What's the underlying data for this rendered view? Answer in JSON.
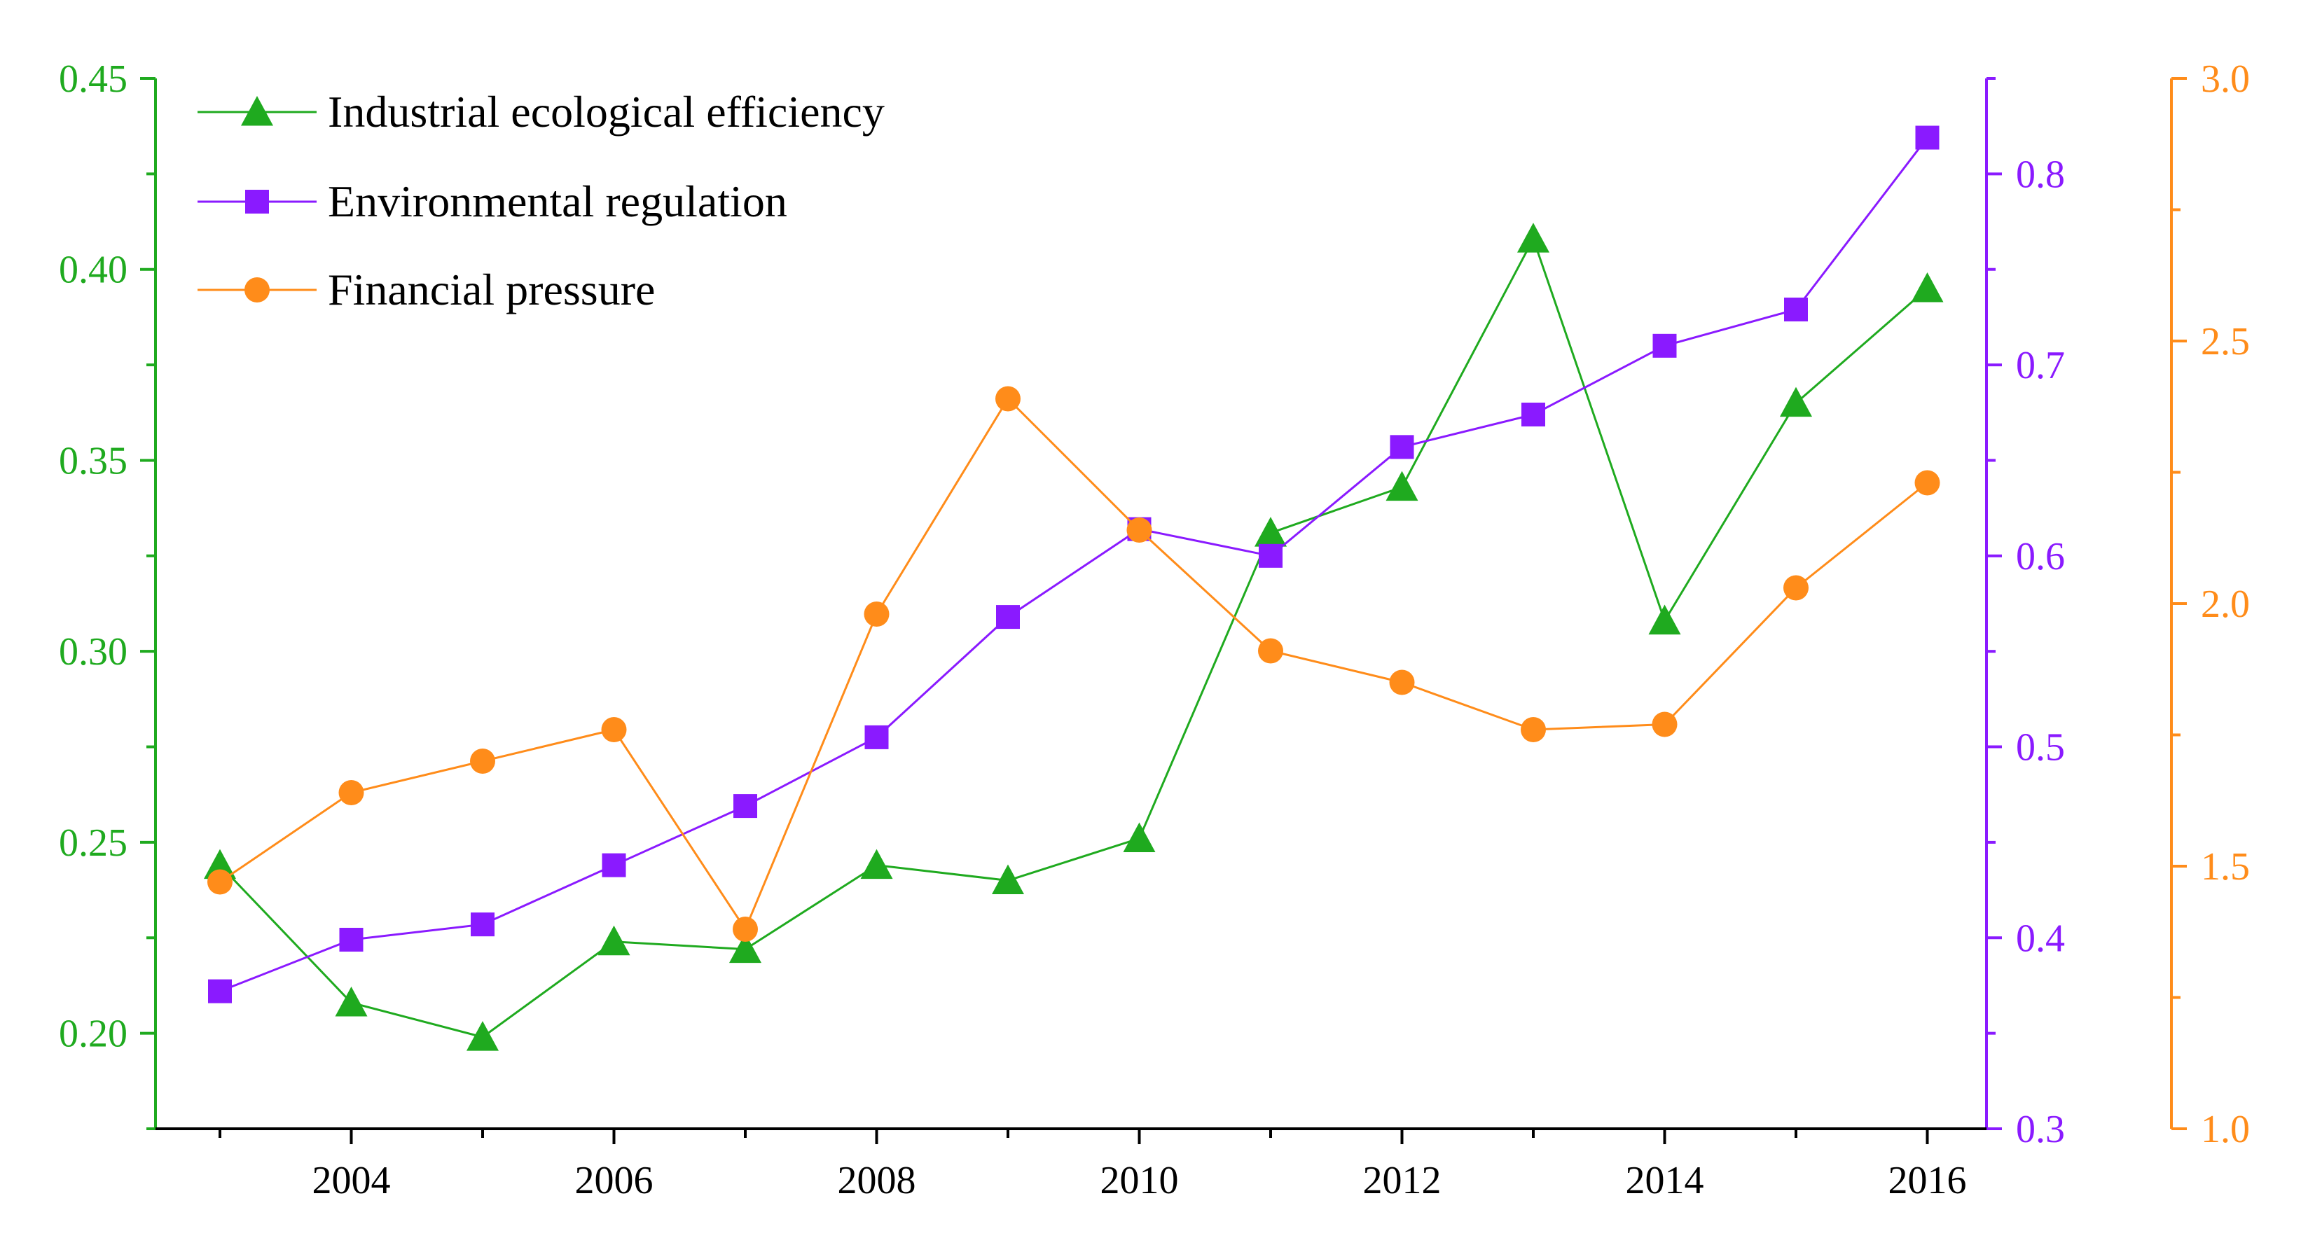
{
  "chart_data": {
    "type": "line",
    "x_ticks": [
      2004,
      2006,
      2008,
      2010,
      2012,
      2014,
      2016
    ],
    "xlim": [
      2002.5,
      2016.5
    ],
    "axes": {
      "left": {
        "color": "#1faa1f",
        "min": 0.175,
        "max": 0.45,
        "labels": [
          "0.20",
          "0.25",
          "0.30",
          "0.35",
          "0.40",
          "0.45"
        ],
        "ticks": [
          0.2,
          0.25,
          0.3,
          0.35,
          0.4,
          0.45
        ]
      },
      "right1": {
        "color": "#8a1aff",
        "min": 0.3,
        "max": 0.85,
        "labels": [
          "0.3",
          "0.4",
          "0.5",
          "0.6",
          "0.7",
          "0.8"
        ],
        "ticks": [
          0.3,
          0.4,
          0.5,
          0.6,
          0.7,
          0.8
        ]
      },
      "right2": {
        "color": "#ff8c1a",
        "min": 1.0,
        "max": 3.0,
        "labels": [
          "1.0",
          "1.5",
          "2.0",
          "2.5",
          "3.0"
        ],
        "ticks": [
          1.0,
          1.5,
          2.0,
          2.5,
          3.0
        ]
      }
    },
    "series": [
      {
        "name": "Industrial ecological efficiency",
        "axis": "left",
        "marker": "triangle",
        "color": "#1faa1f",
        "x": [
          2003,
          2004,
          2005,
          2006,
          2007,
          2008,
          2009,
          2010,
          2011,
          2012,
          2013,
          2014,
          2015,
          2016
        ],
        "values": [
          0.244,
          0.208,
          0.199,
          0.224,
          0.222,
          0.244,
          0.24,
          0.251,
          0.331,
          0.343,
          0.408,
          0.308,
          0.365,
          0.395
        ]
      },
      {
        "name": "Environmental regulation",
        "axis": "right1",
        "marker": "square",
        "color": "#8a1aff",
        "x": [
          2003,
          2004,
          2005,
          2006,
          2007,
          2008,
          2009,
          2010,
          2011,
          2012,
          2013,
          2014,
          2015,
          2016
        ],
        "values": [
          0.372,
          0.399,
          0.407,
          0.438,
          0.469,
          0.505,
          0.568,
          0.614,
          0.6,
          0.657,
          0.674,
          0.71,
          0.729,
          0.819
        ]
      },
      {
        "name": "Financial pressure",
        "axis": "right2",
        "marker": "circle",
        "color": "#ff8c1a",
        "x": [
          2003,
          2004,
          2005,
          2006,
          2007,
          2008,
          2009,
          2010,
          2011,
          2012,
          2013,
          2014,
          2015,
          2016
        ],
        "values": [
          1.47,
          1.64,
          1.7,
          1.76,
          1.38,
          1.98,
          2.39,
          2.14,
          1.91,
          1.85,
          1.76,
          1.77,
          2.03,
          2.23
        ]
      }
    ],
    "legend": "top-left"
  }
}
